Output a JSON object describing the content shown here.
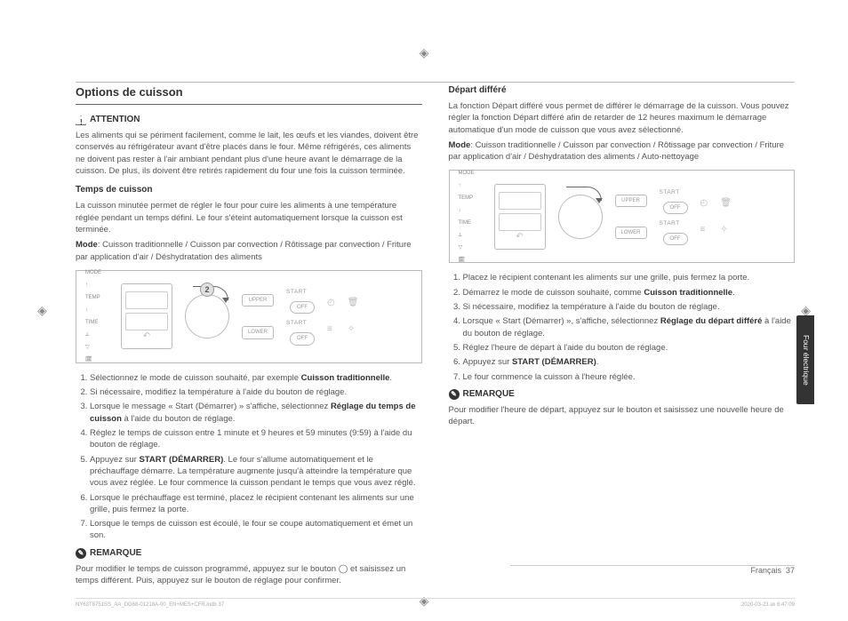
{
  "page": {
    "section_title": "Options de cuisson",
    "side_tab": "Four électrique",
    "footer_lang": "Français",
    "footer_page": "37",
    "doc_file": "NY63T8751SS_AA_DG68-01218A-00_EN+MES+CFR.indb   37",
    "doc_date": "2020-03-23   ㏂ 6:47:09"
  },
  "left": {
    "attention_label": "ATTENTION",
    "attention_text": "Les aliments qui se périment facilement, comme le lait, les œufs et les viandes, doivent être conservés au réfrigérateur avant d'être placés dans le four. Même réfrigérés, ces aliments ne doivent pas rester à l'air ambiant pendant plus d'une heure avant le démarrage de la cuisson. De plus, ils doivent être retirés rapidement du four une fois la cuisson terminée.",
    "temps_title": "Temps de cuisson",
    "temps_text": "La cuisson minutée permet de régler le four pour cuire les aliments à une température réglée pendant un temps défini. Le four s'éteint automatiquement lorsque la cuisson est terminée.",
    "temps_mode_label": "Mode",
    "temps_mode_text": ": Cuisson traditionnelle / Cuisson par convection / Rôtissage par convection / Friture par application d'air / Déshydratation des aliments",
    "diagram": {
      "icons": [
        "MODE",
        "↑",
        "TEMP",
        "↓",
        "TIME",
        "⟂",
        "▽",
        "🗓"
      ],
      "badge": "2",
      "upper": "UPPER",
      "lower": "LOWER",
      "start": "START",
      "off": "OFF"
    },
    "steps": [
      "Sélectionnez le mode de cuisson souhaité, par exemple <b>Cuisson traditionnelle</b>.",
      "Si nécessaire, modifiez la température à l'aide du bouton de réglage.",
      "Lorsque le message « Start (Démarrer) » s'affiche, sélectionnez <b>Réglage du temps de cuisson</b> à l'aide du bouton de réglage.",
      "Réglez le temps de cuisson entre 1 minute et 9 heures et 59 minutes (9:59) à l'aide du bouton de réglage.",
      "Appuyez sur <b>START (DÉMARRER)</b>. Le four s'allume automatiquement et le préchauffage démarre. La température augmente jusqu'à atteindre la température que vous avez réglée. Le four commence la cuisson pendant le temps que vous avez réglé.",
      "Lorsque le préchauffage est terminé, placez le récipient contenant les aliments sur une grille, puis fermez la porte.",
      "Lorsque le temps de cuisson est écoulé, le four se coupe automatiquement et émet un son."
    ],
    "remarque_label": "REMARQUE",
    "remarque_text": "Pour modifier le temps de cuisson programmé, appuyez sur le bouton ◯ et saisissez un temps différent. Puis, appuyez sur le bouton de réglage pour confirmer."
  },
  "right": {
    "depart_title": "Départ différé",
    "depart_text": "La fonction Départ différé vous permet de différer le démarrage de la cuisson. Vous pouvez régler la fonction Départ différé afin de retarder de 12 heures maximum le démarrage automatique d'un mode de cuisson que vous avez sélectionné.",
    "depart_mode_label": "Mode",
    "depart_mode_text": ": Cuisson traditionnelle / Cuisson par convection / Rôtissage par convection / Friture par application d'air / Déshydratation des aliments / Auto-nettoyage",
    "diagram": {
      "upper": "UPPER",
      "lower": "LOWER",
      "start": "START",
      "off": "OFF"
    },
    "steps": [
      "Placez le récipient contenant les aliments sur une grille, puis fermez la porte.",
      "Démarrez le mode de cuisson souhaité, comme <b>Cuisson traditionnelle</b>.",
      "Si nécessaire, modifiez la température à l'aide du bouton de réglage.",
      "Lorsque « Start (Démarrer) », s'affiche, sélectionnez <b>Réglage du départ différé</b> à l'aide du bouton de réglage.",
      "Réglez l'heure de départ à l'aide du bouton de réglage.",
      "Appuyez sur <b>START (DÉMARRER)</b>.",
      "Le four commence la cuisson à l'heure réglée."
    ],
    "remarque_label": "REMARQUE",
    "remarque_text": "Pour modifier l'heure de départ, appuyez sur le bouton et saisissez une nouvelle heure de départ."
  }
}
